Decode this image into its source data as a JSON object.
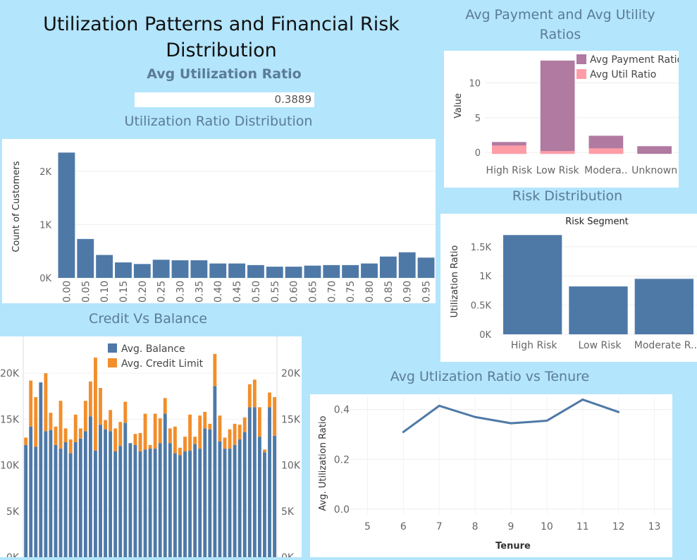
{
  "dashboard": {
    "title": "Utilization Patterns and Financial Risk Distribution",
    "kpi_title": "Avg Utilization Ratio",
    "kpi_value": "0.3889"
  },
  "colors": {
    "background": "#b3e5fc",
    "blue": "#4e79a7",
    "orange": "#f28e2b",
    "mauve": "#b07aa1",
    "pink": "#ff9da7",
    "title_blue": "#5b7b99"
  },
  "chart_data": [
    {
      "id": "payment_util",
      "type": "bar",
      "stacked": true,
      "title": "Avg Payment and Avg Utility Ratios",
      "ylabel": "Value",
      "xlabel": "",
      "categories": [
        "High Risk",
        "Low Risk",
        "Modera..",
        "Unknown"
      ],
      "series": [
        {
          "name": "Avg Payment Ratio",
          "values": [
            1.5,
            13.2,
            2.4,
            0.9
          ]
        },
        {
          "name": "Avg Util Ratio",
          "values": [
            1.0,
            0.2,
            0.6,
            0.0
          ]
        }
      ],
      "ylim": [
        -1,
        14
      ],
      "yticks": [
        "0",
        "5",
        "10"
      ],
      "legend": "top-right"
    },
    {
      "id": "util_distribution",
      "type": "bar",
      "title": "Utilization Ratio Distribution",
      "ylabel": "Count of Customers",
      "xlabel": "",
      "categories": [
        "0.00",
        "0.05",
        "0.10",
        "0.15",
        "0.20",
        "0.25",
        "0.30",
        "0.35",
        "0.40",
        "0.45",
        "0.50",
        "0.55",
        "0.60",
        "0.65",
        "0.70",
        "0.75",
        "0.80",
        "0.85",
        "0.90",
        "0.95"
      ],
      "values": [
        2350,
        730,
        430,
        290,
        260,
        340,
        330,
        330,
        270,
        270,
        240,
        210,
        210,
        230,
        240,
        240,
        270,
        400,
        480,
        380
      ],
      "ylim": [
        0,
        2500
      ],
      "yticks": [
        "0K",
        "1K",
        "2K"
      ]
    },
    {
      "id": "risk_distribution",
      "type": "bar",
      "title": "Risk Distribution",
      "subtitle": "Risk Segment",
      "ylabel": "Utilization Ratio",
      "xlabel": "",
      "categories": [
        "High Risk",
        "Low Risk",
        "Moderate R.."
      ],
      "values": [
        1700,
        820,
        950
      ],
      "ylim": [
        0,
        1800
      ],
      "yticks": [
        "0K",
        "0.5K",
        "1K",
        "1.5K"
      ]
    },
    {
      "id": "credit_balance",
      "type": "bar",
      "stacked": true,
      "title": "Credit Vs Balance",
      "xlabel": "",
      "ylabel": "",
      "series": [
        {
          "name": "Avg. Balance",
          "values": [
            12200,
            14200,
            12000,
            19000,
            13700,
            13800,
            12200,
            11800,
            12500,
            11300,
            12500,
            12900,
            13700,
            15300,
            11600,
            14400,
            13900,
            13700,
            11500,
            12100,
            14600,
            12400,
            12200,
            11500,
            11700,
            11800,
            11800,
            12400,
            15600,
            12400,
            11300,
            11100,
            11500,
            11600,
            12300,
            11800,
            14000,
            13900,
            18600,
            12600,
            11800,
            11800,
            12200,
            12800,
            13600,
            16300,
            16300,
            13100,
            11400,
            16300,
            13200
          ]
        },
        {
          "name": "Avg. Credit Limit",
          "values": [
            800,
            5000,
            5400,
            0,
            6300,
            1900,
            2000,
            5200,
            1500,
            1500,
            3000,
            1100,
            3300,
            3800,
            10100,
            4000,
            1000,
            2300,
            2500,
            2600,
            2300,
            0,
            1200,
            2000,
            3900,
            400,
            3800,
            2700,
            1700,
            1600,
            2900,
            800,
            1600,
            3900,
            800,
            3600,
            1800,
            600,
            3500,
            2800,
            1200,
            2100,
            2300,
            1600,
            1600,
            2500,
            3000,
            3200,
            300,
            1600,
            4200
          ]
        }
      ],
      "ylim": [
        0,
        24000
      ],
      "yticks": [
        "0K",
        "5K",
        "10K",
        "15K",
        "20K"
      ],
      "legend": "top"
    },
    {
      "id": "util_vs_tenure",
      "type": "line",
      "title": "Avg Utlization Ratio vs Tenure",
      "xlabel": "Tenure",
      "ylabel": "Avg. Utilization Ratio",
      "x": [
        6,
        7,
        8,
        9,
        10,
        11,
        12
      ],
      "y": [
        0.31,
        0.415,
        0.37,
        0.345,
        0.355,
        0.44,
        0.39
      ],
      "xlim": [
        4.5,
        13.5
      ],
      "ylim": [
        -0.02,
        0.45
      ],
      "xticks": [
        "5",
        "6",
        "7",
        "8",
        "9",
        "10",
        "11",
        "12",
        "13"
      ],
      "yticks": [
        "0.0",
        "0.2",
        "0.4"
      ]
    }
  ]
}
